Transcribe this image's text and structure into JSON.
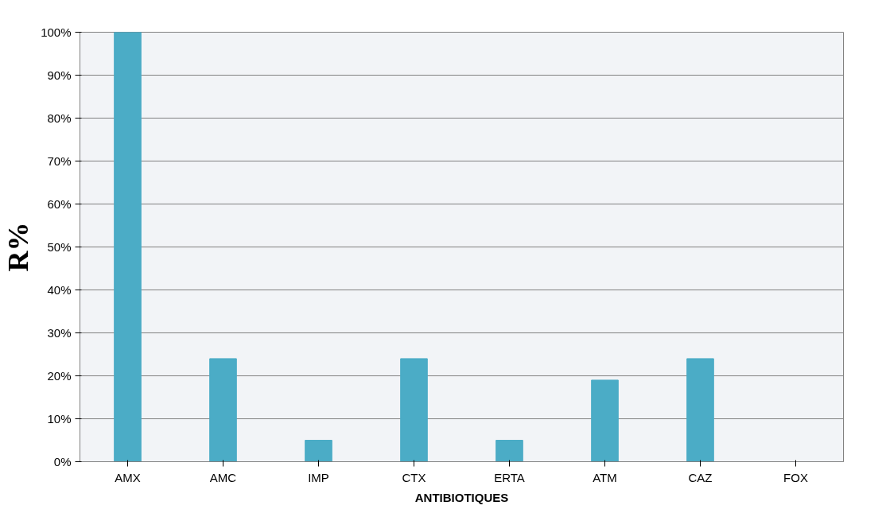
{
  "chart_data": {
    "type": "bar",
    "xlabel": "ANTIBIOTIQUES",
    "ylabel": "R%",
    "categories": [
      "AMX",
      "AMC",
      "IMP",
      "CTX",
      "ERTA",
      "ATM",
      "CAZ",
      "FOX"
    ],
    "values": [
      100,
      24,
      5,
      24,
      5,
      19,
      24,
      0
    ],
    "color": "#4bacc6",
    "ylim": [
      0,
      100
    ],
    "yticks": [
      {
        "value": 0,
        "label": "0%"
      },
      {
        "value": 10,
        "label": "10%"
      },
      {
        "value": 20,
        "label": "20%"
      },
      {
        "value": 30,
        "label": "30%"
      },
      {
        "value": 40,
        "label": "40%"
      },
      {
        "value": 50,
        "label": "50%"
      },
      {
        "value": 60,
        "label": "60%"
      },
      {
        "value": 70,
        "label": "70%"
      },
      {
        "value": 80,
        "label": "80%"
      },
      {
        "value": 90,
        "label": "90%"
      },
      {
        "value": 100,
        "label": "100%"
      }
    ],
    "grid": "y"
  }
}
